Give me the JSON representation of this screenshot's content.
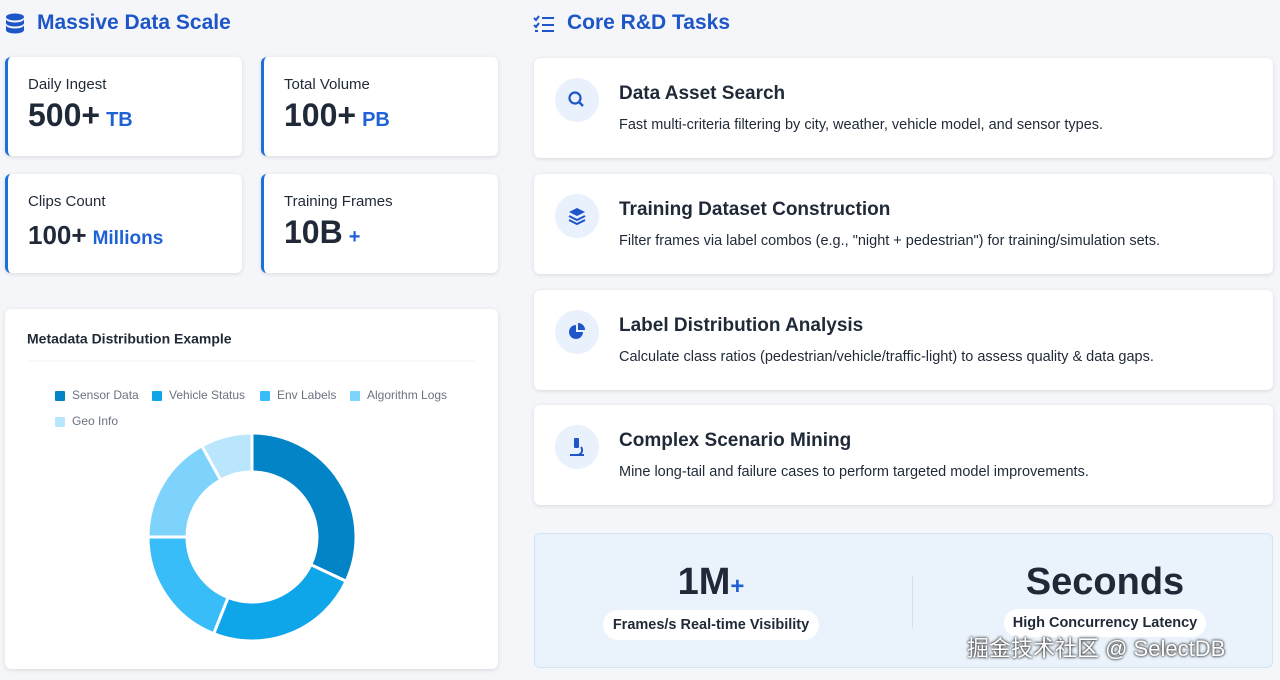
{
  "left_section": {
    "title": "Massive Data Scale"
  },
  "stats": [
    {
      "label": "Daily Ingest",
      "value": "500+",
      "unit": "TB"
    },
    {
      "label": "Total Volume",
      "value": "100+",
      "unit": "PB"
    },
    {
      "label": "Clips Count",
      "value": "100+",
      "unit": "Millions"
    },
    {
      "label": "Training Frames",
      "value": "10B",
      "unit": "+"
    }
  ],
  "chart_data": {
    "type": "pie",
    "title": "Metadata Distribution Example",
    "categories": [
      "Sensor Data",
      "Vehicle Status",
      "Env Labels",
      "Algorithm Logs",
      "Geo Info"
    ],
    "values": [
      32,
      24,
      19,
      17,
      8
    ],
    "colors": [
      "#0284c7",
      "#0ea5e9",
      "#38bdf8",
      "#7dd3fc",
      "#bae6fd"
    ],
    "donut": true,
    "legend": "top"
  },
  "right_section": {
    "title": "Core R&D Tasks"
  },
  "tasks": [
    {
      "title": "Data Asset Search",
      "description": "Fast multi-criteria filtering by city, weather, vehicle model, and sensor types."
    },
    {
      "title": "Training Dataset Construction",
      "description": "Filter frames via label combos (e.g., \"night + pedestrian\") for training/simulation sets."
    },
    {
      "title": "Label Distribution Analysis",
      "description": "Calculate class ratios (pedestrian/vehicle/traffic-light) to assess quality & data gaps."
    },
    {
      "title": "Complex Scenario Mining",
      "description": "Mine long-tail and failure cases to perform targeted model improvements."
    }
  ],
  "highlights": [
    {
      "value": "1M",
      "suffix": "+",
      "label": "Frames/s Real-time Visibility"
    },
    {
      "value": "Seconds",
      "label": "High Concurrency Latency"
    }
  ],
  "watermark": "掘金技术社区 @ SelectDB"
}
